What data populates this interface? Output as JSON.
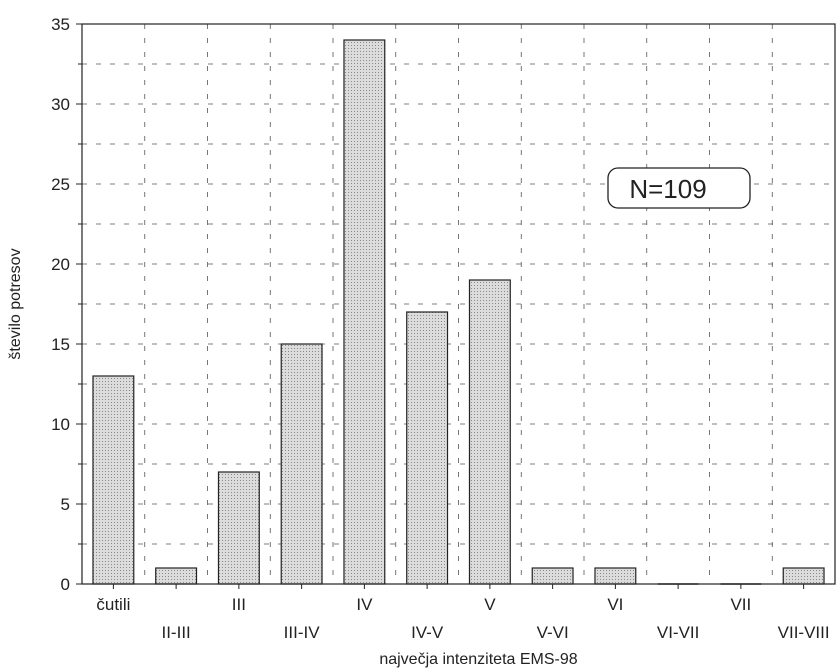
{
  "chart_data": {
    "type": "bar",
    "categories": [
      "čutili",
      "II-III",
      "III",
      "III-IV",
      "IV",
      "IV-V",
      "V",
      "V-VI",
      "VI",
      "VI-VII",
      "VII",
      "VII-VIII"
    ],
    "values": [
      13,
      1,
      7,
      15,
      34,
      17,
      19,
      1,
      1,
      0,
      0,
      1
    ],
    "title": "",
    "xlabel": "največja intenziteta EMS-98",
    "ylabel": "število potresov",
    "ylim": [
      0,
      35
    ],
    "yticks": [
      0,
      5,
      10,
      15,
      20,
      25,
      30,
      35
    ],
    "grid": true,
    "annotation": "N=109",
    "bar_fill": "#dcdcdc",
    "bar_stroke": "#222222"
  }
}
